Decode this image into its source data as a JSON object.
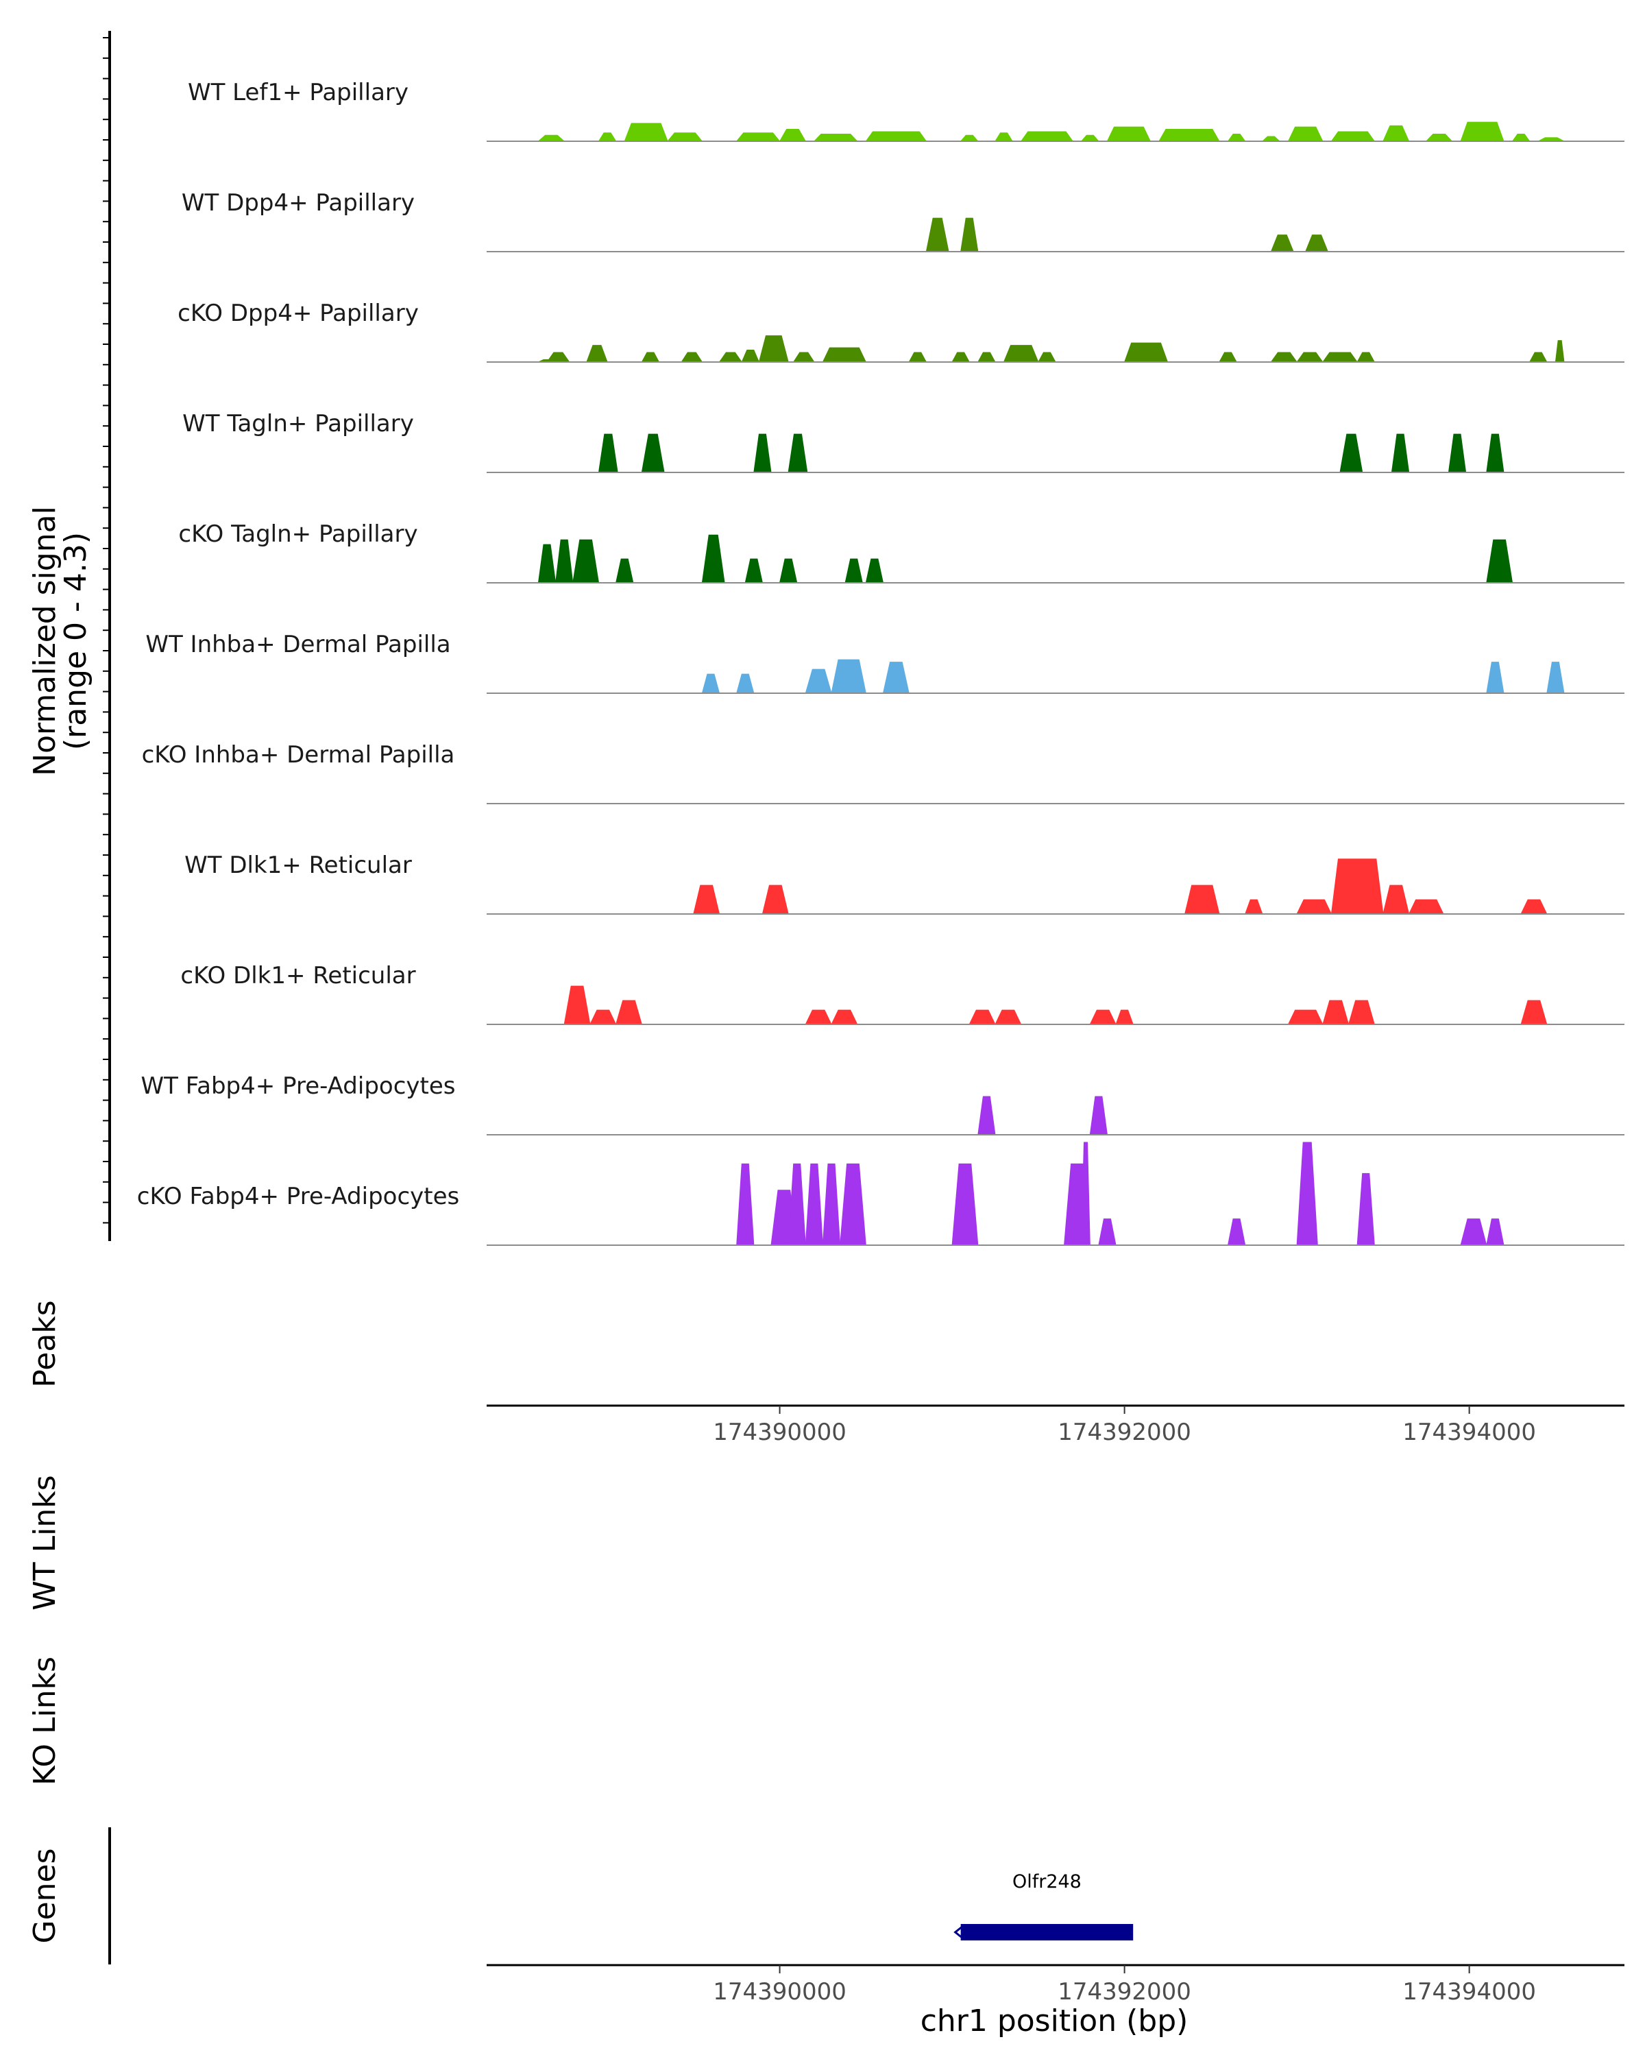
{
  "chart_data": {
    "type": "area",
    "title": "",
    "chromosome": "chr1",
    "xlabel": "chr1 position (bp)",
    "xlim": [
      174388300,
      174394900
    ],
    "x_ticks": [
      174390000,
      174392000,
      174394000
    ],
    "x_tick_labels": [
      "174390000",
      "174392000",
      "174394000"
    ],
    "ylabel": "Normalized signal",
    "ylabel_range": "(range 0 - 4.3)",
    "ylim": [
      0,
      4.3
    ],
    "tracks": [
      {
        "name": "WT Lef1+ Papillary",
        "color": "#66CC00",
        "peaks": [
          [
            174388600,
            174388750,
            0.25
          ],
          [
            174388950,
            174389050,
            0.35
          ],
          [
            174389100,
            174389350,
            0.75
          ],
          [
            174389350,
            174389550,
            0.35
          ],
          [
            174389750,
            174390000,
            0.35
          ],
          [
            174390000,
            174390150,
            0.5
          ],
          [
            174390200,
            174390450,
            0.3
          ],
          [
            174390500,
            174390850,
            0.4
          ],
          [
            174391050,
            174391150,
            0.25
          ],
          [
            174391250,
            174391350,
            0.35
          ],
          [
            174391400,
            174391700,
            0.4
          ],
          [
            174391750,
            174391850,
            0.25
          ],
          [
            174391900,
            174392150,
            0.6
          ],
          [
            174392200,
            174392550,
            0.5
          ],
          [
            174392600,
            174392700,
            0.3
          ],
          [
            174392800,
            174392900,
            0.2
          ],
          [
            174392950,
            174393150,
            0.6
          ],
          [
            174393200,
            174393450,
            0.4
          ],
          [
            174393500,
            174393650,
            0.65
          ],
          [
            174393750,
            174393900,
            0.3
          ],
          [
            174393950,
            174394200,
            0.8
          ],
          [
            174394250,
            174394350,
            0.3
          ],
          [
            174394400,
            174394550,
            0.15
          ]
        ]
      },
      {
        "name": "WT Dpp4+ Papillary",
        "color": "#4D8C00",
        "peaks": [
          [
            174390850,
            174390980,
            1.4
          ],
          [
            174391050,
            174391150,
            1.4
          ],
          [
            174392850,
            174392980,
            0.7
          ],
          [
            174393050,
            174393180,
            0.7
          ]
        ]
      },
      {
        "name": "cKO Dpp4+ Papillary",
        "color": "#4B8B00",
        "peaks": [
          [
            174388600,
            174388700,
            0.1
          ],
          [
            174388650,
            174388780,
            0.4
          ],
          [
            174388880,
            174389000,
            0.7
          ],
          [
            174389200,
            174389300,
            0.4
          ],
          [
            174389430,
            174389550,
            0.4
          ],
          [
            174389650,
            174389780,
            0.4
          ],
          [
            174389780,
            174389880,
            0.5
          ],
          [
            174389880,
            174390050,
            1.1
          ],
          [
            174390080,
            174390200,
            0.4
          ],
          [
            174390250,
            174390500,
            0.6
          ],
          [
            174390750,
            174390850,
            0.4
          ],
          [
            174391000,
            174391100,
            0.4
          ],
          [
            174391150,
            174391250,
            0.4
          ],
          [
            174391300,
            174391500,
            0.7
          ],
          [
            174391500,
            174391600,
            0.4
          ],
          [
            174392000,
            174392250,
            0.8
          ],
          [
            174392550,
            174392650,
            0.4
          ],
          [
            174392850,
            174393000,
            0.4
          ],
          [
            174393000,
            174393150,
            0.4
          ],
          [
            174393150,
            174393350,
            0.4
          ],
          [
            174393350,
            174393450,
            0.4
          ],
          [
            174394350,
            174394450,
            0.4
          ],
          [
            174394500,
            174394550,
            0.9
          ]
        ]
      },
      {
        "name": "WT Tagln+ Papillary",
        "color": "#006400",
        "peaks": [
          [
            174388950,
            174389060,
            1.6
          ],
          [
            174389200,
            174389330,
            1.6
          ],
          [
            174389850,
            174389950,
            1.6
          ],
          [
            174390050,
            174390160,
            1.6
          ],
          [
            174393250,
            174393380,
            1.6
          ],
          [
            174393550,
            174393650,
            1.6
          ],
          [
            174393880,
            174393980,
            1.6
          ],
          [
            174394100,
            174394200,
            1.6
          ]
        ]
      },
      {
        "name": "cKO Tagln+ Papillary",
        "color": "#006400",
        "peaks": [
          [
            174388600,
            174388700,
            1.6
          ],
          [
            174388700,
            174388800,
            1.8
          ],
          [
            174388800,
            174388950,
            1.8
          ],
          [
            174389050,
            174389150,
            1.0
          ],
          [
            174389550,
            174389680,
            2.0
          ],
          [
            174389800,
            174389900,
            1.0
          ],
          [
            174390000,
            174390100,
            1.0
          ],
          [
            174390380,
            174390480,
            1.0
          ],
          [
            174390500,
            174390600,
            1.0
          ],
          [
            174394100,
            174394250,
            1.8
          ]
        ]
      },
      {
        "name": "WT Inhba+ Dermal Papilla",
        "color": "#5DADE2",
        "peaks": [
          [
            174389550,
            174389650,
            0.8
          ],
          [
            174389750,
            174389850,
            0.8
          ],
          [
            174390150,
            174390300,
            1.0
          ],
          [
            174390300,
            174390500,
            1.4
          ],
          [
            174390600,
            174390750,
            1.3
          ],
          [
            174394100,
            174394200,
            1.3
          ],
          [
            174394450,
            174394550,
            1.3
          ]
        ]
      },
      {
        "name": "cKO Inhba+ Dermal Papilla",
        "color": "#5DADE2",
        "peaks": []
      },
      {
        "name": "WT Dlk1+ Reticular",
        "color": "#FF3333",
        "peaks": [
          [
            174389500,
            174389650,
            1.2
          ],
          [
            174389900,
            174390050,
            1.2
          ],
          [
            174392350,
            174392550,
            1.2
          ],
          [
            174392700,
            174392800,
            0.6
          ],
          [
            174393000,
            174393200,
            0.6
          ],
          [
            174393200,
            174393500,
            2.3
          ],
          [
            174393500,
            174393650,
            1.2
          ],
          [
            174393650,
            174393850,
            0.6
          ],
          [
            174394300,
            174394450,
            0.6
          ]
        ]
      },
      {
        "name": "cKO Dlk1+ Reticular",
        "color": "#FF3333",
        "peaks": [
          [
            174388750,
            174388900,
            1.6
          ],
          [
            174388900,
            174389050,
            0.6
          ],
          [
            174389050,
            174389200,
            1.0
          ],
          [
            174390150,
            174390300,
            0.6
          ],
          [
            174390300,
            174390450,
            0.6
          ],
          [
            174391100,
            174391250,
            0.6
          ],
          [
            174391250,
            174391400,
            0.6
          ],
          [
            174391800,
            174391950,
            0.6
          ],
          [
            174391950,
            174392050,
            0.6
          ],
          [
            174392950,
            174393150,
            0.6
          ],
          [
            174393150,
            174393300,
            1.0
          ],
          [
            174393300,
            174393450,
            1.0
          ],
          [
            174394300,
            174394450,
            1.0
          ]
        ]
      },
      {
        "name": "WT Fabp4+ Pre-Adipocytes",
        "color": "#A335EE",
        "peaks": [
          [
            174391150,
            174391250,
            1.6
          ],
          [
            174391800,
            174391900,
            1.6
          ]
        ]
      },
      {
        "name": "cKO Fabp4+ Pre-Adipocytes",
        "color": "#A335EE",
        "peaks": [
          [
            174389750,
            174389850,
            3.4
          ],
          [
            174389950,
            174390100,
            2.3
          ],
          [
            174390050,
            174390150,
            3.4
          ],
          [
            174390150,
            174390250,
            3.4
          ],
          [
            174390250,
            174390350,
            3.4
          ],
          [
            174390350,
            174390500,
            3.4
          ],
          [
            174391000,
            174391150,
            3.4
          ],
          [
            174391650,
            174391800,
            3.4
          ],
          [
            174391750,
            174391800,
            4.3
          ],
          [
            174391850,
            174391950,
            1.1
          ],
          [
            174392600,
            174392700,
            1.1
          ],
          [
            174393000,
            174393120,
            4.3
          ],
          [
            174393350,
            174393450,
            3.0
          ],
          [
            174393950,
            174394100,
            1.1
          ],
          [
            174394100,
            174394200,
            1.1
          ]
        ]
      }
    ],
    "panels": {
      "peaks": "Peaks",
      "wt_links": "WT Links",
      "ko_links": "KO Links",
      "genes": "Genes"
    },
    "gene": {
      "name": "Olfr248",
      "start": 174391050,
      "end": 174392050,
      "strand": "-",
      "color": "#00008B"
    }
  }
}
